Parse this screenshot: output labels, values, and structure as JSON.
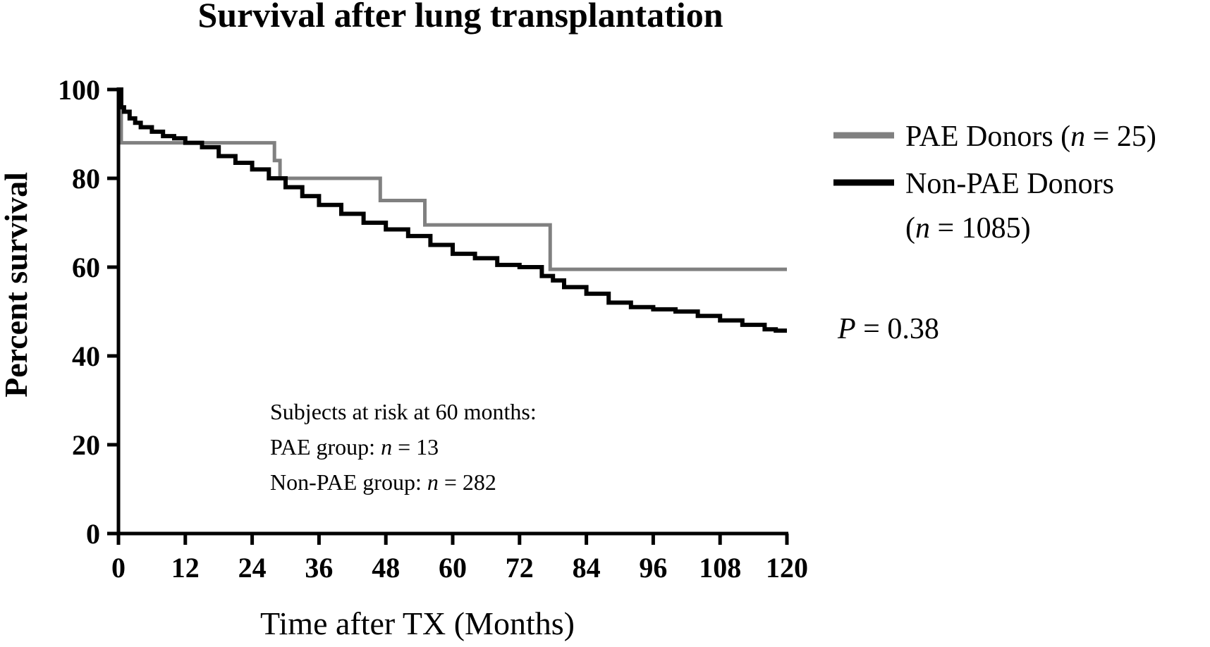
{
  "chart_data": {
    "type": "line",
    "step": true,
    "title": "Survival after lung  transplantation",
    "xlabel": "Time after TX (Months)",
    "ylabel": "Percent survival",
    "xlim": [
      0,
      120
    ],
    "ylim": [
      0,
      100
    ],
    "xticks": [
      0,
      12,
      24,
      36,
      48,
      60,
      72,
      84,
      96,
      108,
      120
    ],
    "yticks": [
      0,
      20,
      40,
      60,
      80,
      100
    ],
    "grid": false,
    "legend_position": "right",
    "series": [
      {
        "name": "PAE Donors (n = 25)",
        "legend_prefix": "PAE Donors (",
        "legend_n": "n",
        "legend_suffix": " = 25)",
        "color": "#808080",
        "x": [
          0,
          0.5,
          28,
          29,
          47,
          55,
          77.5,
          120
        ],
        "y": [
          100,
          88,
          84,
          80,
          75,
          69.5,
          59.5,
          59.5
        ]
      },
      {
        "name": "Non-PAE Donors (n = 1085)",
        "legend_line1": "Non-PAE Donors",
        "legend_prefix": "(",
        "legend_n": "n",
        "legend_suffix": " = 1085)",
        "color": "#000000",
        "x": [
          0,
          0.5,
          1,
          2,
          3,
          4,
          6,
          8,
          10,
          12,
          15,
          18,
          21,
          24,
          27,
          30,
          33,
          36,
          40,
          44,
          48,
          52,
          56,
          60,
          64,
          68,
          72,
          76,
          78,
          80,
          84,
          88,
          92,
          96,
          100,
          104,
          108,
          112,
          116,
          118,
          120
        ],
        "y": [
          100,
          96,
          95,
          93.5,
          92.5,
          91.5,
          90.5,
          89.5,
          89,
          88,
          87,
          85,
          83.5,
          82,
          80,
          78,
          76,
          74,
          72,
          70,
          68.5,
          67,
          65,
          63,
          62,
          60.5,
          60,
          58,
          57,
          55.5,
          54,
          52,
          51,
          50.5,
          50,
          49,
          48,
          47,
          46,
          45.7,
          45.7
        ]
      }
    ],
    "annotations": {
      "p_label": "P",
      "p_value": " = 0.38",
      "risk_title": "Subjects at risk at 60 months:",
      "risk_pae_prefix": "PAE group: ",
      "risk_pae_n": "n",
      "risk_pae_value": " = 13",
      "risk_nonpae_prefix": "Non-PAE group: ",
      "risk_nonpae_n": "n",
      "risk_nonpae_value": " = 282"
    }
  }
}
